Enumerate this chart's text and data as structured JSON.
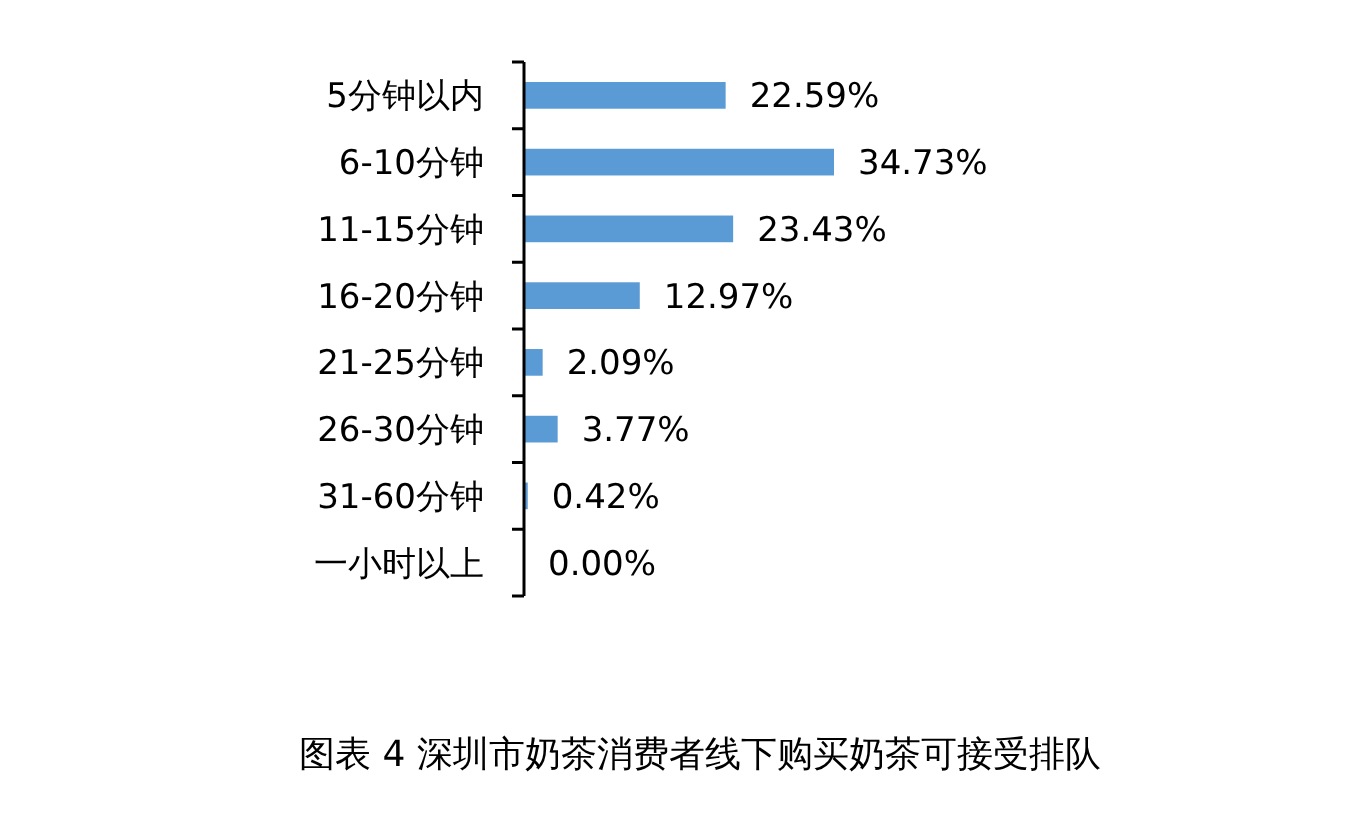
{
  "chart_data": {
    "type": "bar",
    "orientation": "horizontal",
    "title": "图表 4 深圳市奶茶消费者线下购买奶茶可接受排队",
    "categories": [
      "5分钟以内",
      "6-10分钟",
      "11-15分钟",
      "16-20分钟",
      "21-25分钟",
      "26-30分钟",
      "31-60分钟",
      "一小时以上"
    ],
    "values": [
      22.59,
      34.73,
      23.43,
      12.97,
      2.09,
      3.77,
      0.42,
      0.0
    ],
    "value_labels": [
      "22.59%",
      "34.73%",
      "23.43%",
      "12.97%",
      "2.09%",
      "3.77%",
      "0.42%",
      "0.00%"
    ],
    "color": "#5b9bd5"
  }
}
